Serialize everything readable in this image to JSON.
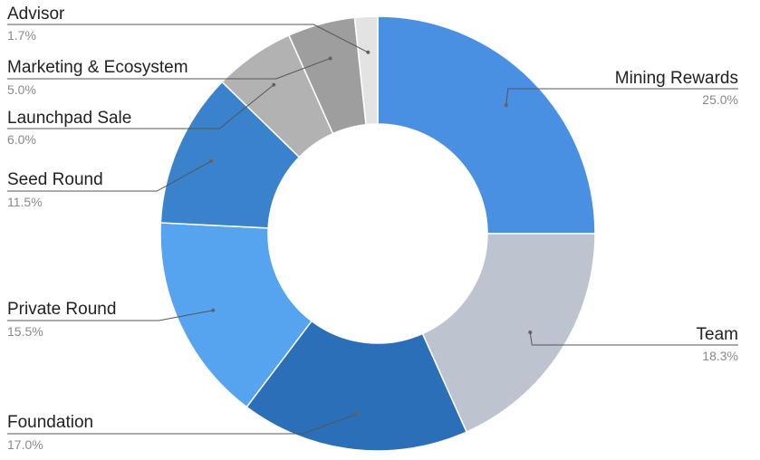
{
  "chart_data": {
    "type": "pie",
    "donut": true,
    "title": "",
    "slices": [
      {
        "label": "Mining Rewards",
        "value": 25.0,
        "value_label": "25.0%",
        "color": "#4A90E2"
      },
      {
        "label": "Team",
        "value": 18.3,
        "value_label": "18.3%",
        "color": "#BDC3CF"
      },
      {
        "label": "Foundation",
        "value": 17.0,
        "value_label": "17.0%",
        "color": "#2B6FB8"
      },
      {
        "label": "Private Round",
        "value": 15.5,
        "value_label": "15.5%",
        "color": "#56A4F0"
      },
      {
        "label": "Seed Round",
        "value": 11.5,
        "value_label": "11.5%",
        "color": "#3A82CC"
      },
      {
        "label": "Launchpad Sale",
        "value": 6.0,
        "value_label": "6.0%",
        "color": "#B2B2B2"
      },
      {
        "label": "Marketing & Ecosystem",
        "value": 5.0,
        "value_label": "5.0%",
        "color": "#9E9E9E"
      },
      {
        "label": "Advisor",
        "value": 1.7,
        "value_label": "1.7%",
        "color": "#E3E3E3"
      }
    ],
    "legend": "none"
  }
}
